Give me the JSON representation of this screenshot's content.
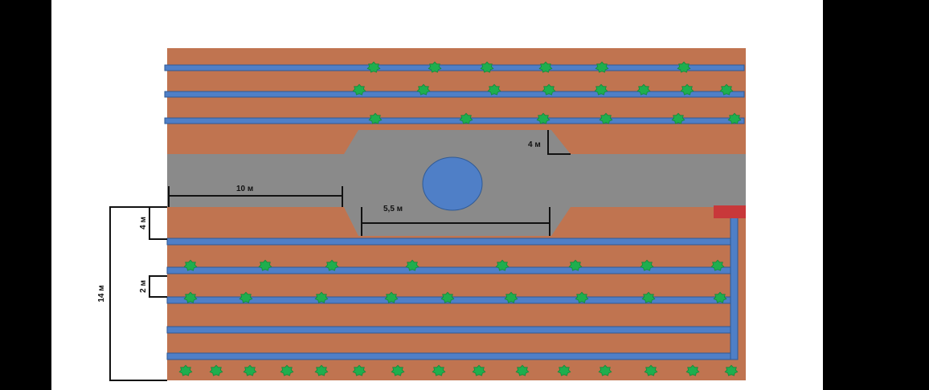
{
  "colors": {
    "background": "#ffffff",
    "soil": "#c07450",
    "pipe": "#4f7fc7",
    "pipe_border": "#2f5a96",
    "path": "#8a8a8a",
    "pond": "#4f7fc7",
    "plant": "#1fae4e",
    "valve": "#c8383a",
    "dimension": "#111111"
  },
  "dimensions": {
    "path_width": "4 м",
    "path_length": "10 м",
    "pond_area_length": "5,5 м",
    "gap_to_beds": "4 м",
    "row_spacing": "2 м",
    "total_width": "14 м"
  },
  "plant_rows": [
    {
      "row": "top-1",
      "count": 6
    },
    {
      "row": "top-2",
      "count": 8
    },
    {
      "row": "top-3",
      "count": 6
    },
    {
      "row": "bottom-2",
      "count": 8
    },
    {
      "row": "bottom-3",
      "count": 9
    },
    {
      "row": "bottom-edge",
      "count": 15
    }
  ]
}
